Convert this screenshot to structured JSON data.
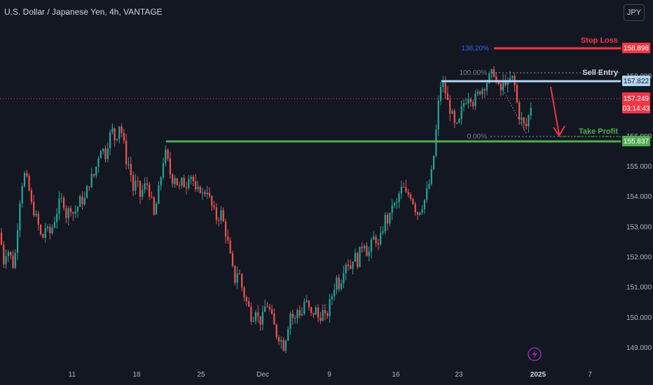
{
  "header": {
    "symbol_title": "U.S. Dollar / Japanese Yen, 4h, VANTAGE",
    "currency_button": "JPY"
  },
  "colors": {
    "background": "#131722",
    "up_candle": "#26a69a",
    "down_candle": "#ef5350",
    "stop_loss": "#f23645",
    "sell_entry": "#b2d4f0",
    "take_profit": "#4caf50",
    "fib_label": "#8a8f9c",
    "fib_138": "#2962ff"
  },
  "chart_data": {
    "type": "candlestick",
    "title": "U.S. Dollar / Japanese Yen, 4h, VANTAGE",
    "y_ticks": [
      "149.000",
      "150.000",
      "151.000",
      "152.000",
      "153.000",
      "154.000",
      "155.000"
    ],
    "x_ticks": [
      "11",
      "18",
      "25",
      "Dec",
      "9",
      "16",
      "23",
      "2025",
      "7"
    ],
    "ylim": [
      148.7,
      159.9
    ],
    "grid": false,
    "price_labels": {
      "stop_loss": "158.898",
      "sell_entry": "157.822",
      "current_price": "157.249",
      "countdown": "03:14:43",
      "take_profit": "155.837",
      "hidden_tick_1": "158.000",
      "hidden_tick_2": "156.000"
    },
    "levels": {
      "stop_loss": 158.898,
      "sell_entry": 157.822,
      "current": 157.249,
      "take_profit": 155.837,
      "fib_100": 158.1,
      "fib_0": 156.0,
      "fib_138": 158.9
    },
    "annotations": {
      "stop_loss": "Stop Loss",
      "sell_entry": "Sell Entry",
      "take_profit": "Take Profit",
      "fib_138": "138.20%",
      "fib_100": "100.00%",
      "fib_0": "0.00%"
    },
    "anchors": {
      "support_start_date": "Nov 21",
      "entry_start_date": "Dec 20"
    },
    "close_points": [
      [
        0,
        152.8
      ],
      [
        5,
        151.8
      ],
      [
        10,
        152.3
      ],
      [
        15,
        152.0
      ],
      [
        20,
        151.6
      ],
      [
        25,
        153.0
      ],
      [
        30,
        154.3
      ],
      [
        35,
        154.7
      ],
      [
        40,
        154.4
      ],
      [
        45,
        153.7
      ],
      [
        50,
        153.4
      ],
      [
        55,
        153.0
      ],
      [
        60,
        152.5
      ],
      [
        65,
        153.0
      ],
      [
        70,
        152.7
      ],
      [
        75,
        153.0
      ],
      [
        80,
        153.4
      ],
      [
        85,
        153.8
      ],
      [
        90,
        153.9
      ],
      [
        95,
        153.3
      ],
      [
        100,
        153.7
      ],
      [
        105,
        153.4
      ],
      [
        110,
        153.6
      ],
      [
        115,
        153.9
      ],
      [
        120,
        153.8
      ],
      [
        125,
        154.3
      ],
      [
        130,
        154.6
      ],
      [
        135,
        154.7
      ],
      [
        140,
        155.3
      ],
      [
        145,
        155.7
      ],
      [
        150,
        155.3
      ],
      [
        155,
        155.9
      ],
      [
        160,
        156.2
      ],
      [
        165,
        155.8
      ],
      [
        170,
        156.4
      ],
      [
        175,
        156.0
      ],
      [
        180,
        155.2
      ],
      [
        185,
        155.0
      ],
      [
        190,
        154.2
      ],
      [
        195,
        154.5
      ],
      [
        200,
        154.0
      ],
      [
        205,
        154.3
      ],
      [
        210,
        154.4
      ],
      [
        215,
        154.0
      ],
      [
        220,
        153.3
      ],
      [
        225,
        154.0
      ],
      [
        230,
        154.7
      ],
      [
        235,
        155.5
      ],
      [
        240,
        155.1
      ],
      [
        245,
        154.5
      ],
      [
        250,
        154.7
      ],
      [
        255,
        154.2
      ],
      [
        260,
        154.5
      ],
      [
        265,
        154.3
      ],
      [
        270,
        154.8
      ],
      [
        275,
        154.6
      ],
      [
        280,
        154.0
      ],
      [
        285,
        154.3
      ],
      [
        290,
        154.0
      ],
      [
        295,
        154.3
      ],
      [
        300,
        153.8
      ],
      [
        305,
        153.5
      ],
      [
        310,
        153.2
      ],
      [
        315,
        153.5
      ],
      [
        320,
        153.0
      ],
      [
        325,
        152.5
      ],
      [
        330,
        151.8
      ],
      [
        335,
        151.2
      ],
      [
        340,
        151.6
      ],
      [
        345,
        151.0
      ],
      [
        350,
        150.6
      ],
      [
        355,
        150.3
      ],
      [
        360,
        149.9
      ],
      [
        365,
        150.3
      ],
      [
        370,
        149.8
      ],
      [
        375,
        150.0
      ],
      [
        380,
        150.5
      ],
      [
        385,
        150.2
      ],
      [
        390,
        149.8
      ],
      [
        395,
        149.4
      ],
      [
        400,
        149.3
      ],
      [
        405,
        149.0
      ],
      [
        410,
        149.6
      ],
      [
        415,
        150.2
      ],
      [
        420,
        149.8
      ],
      [
        425,
        150.3
      ],
      [
        430,
        150.0
      ],
      [
        435,
        150.6
      ],
      [
        440,
        150.3
      ],
      [
        445,
        150.0
      ],
      [
        450,
        150.3
      ],
      [
        455,
        149.9
      ],
      [
        460,
        150.2
      ],
      [
        465,
        149.9
      ],
      [
        470,
        150.4
      ],
      [
        475,
        150.8
      ],
      [
        480,
        151.3
      ],
      [
        485,
        151.0
      ],
      [
        490,
        151.6
      ],
      [
        495,
        151.9
      ],
      [
        500,
        151.6
      ],
      [
        505,
        152.1
      ],
      [
        510,
        151.8
      ],
      [
        515,
        152.3
      ],
      [
        520,
        152.5
      ],
      [
        525,
        152.0
      ],
      [
        530,
        152.4
      ],
      [
        535,
        152.7
      ],
      [
        540,
        152.3
      ],
      [
        545,
        152.8
      ],
      [
        550,
        153.3
      ],
      [
        555,
        153.1
      ],
      [
        560,
        153.8
      ],
      [
        565,
        153.6
      ],
      [
        570,
        154.1
      ],
      [
        575,
        154.3
      ],
      [
        580,
        154.0
      ],
      [
        585,
        154.1
      ],
      [
        590,
        153.8
      ],
      [
        595,
        153.4
      ],
      [
        600,
        153.6
      ],
      [
        605,
        153.8
      ],
      [
        610,
        154.2
      ],
      [
        615,
        154.6
      ],
      [
        620,
        155.5
      ],
      [
        624,
        156.6
      ],
      [
        627,
        157.4
      ],
      [
        630,
        157.8
      ],
      [
        635,
        157.5
      ],
      [
        640,
        157.0
      ],
      [
        645,
        156.7
      ],
      [
        650,
        156.2
      ],
      [
        655,
        156.4
      ],
      [
        660,
        157.0
      ],
      [
        665,
        157.2
      ],
      [
        670,
        157.4
      ],
      [
        675,
        157.1
      ],
      [
        680,
        157.3
      ],
      [
        685,
        157.5
      ],
      [
        690,
        157.6
      ],
      [
        695,
        157.8
      ],
      [
        700,
        158.0
      ],
      [
        705,
        158.1
      ],
      [
        710,
        157.6
      ],
      [
        715,
        157.5
      ],
      [
        720,
        157.9
      ],
      [
        725,
        157.6
      ],
      [
        730,
        158.0
      ],
      [
        735,
        157.6
      ],
      [
        740,
        156.7
      ],
      [
        745,
        156.5
      ],
      [
        750,
        156.2
      ],
      [
        755,
        156.7
      ],
      [
        760,
        157.25
      ]
    ]
  }
}
